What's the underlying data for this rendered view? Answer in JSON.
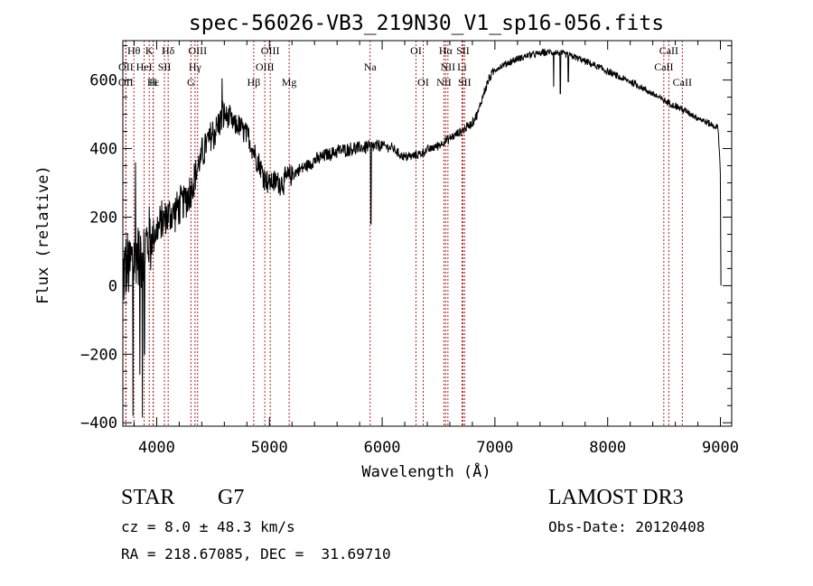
{
  "chart_data": {
    "type": "line",
    "title": "spec-56026-VB3_219N30_V1_sp16-056.fits",
    "xlabel": "Wavelength (Å)",
    "ylabel": "Flux (relative)",
    "xlim": [
      3700,
      9100
    ],
    "ylim": [
      -410,
      715
    ],
    "x_ticks": [
      4000,
      5000,
      6000,
      7000,
      8000,
      9000
    ],
    "y_ticks": [
      -400,
      -200,
      0,
      200,
      400,
      600
    ],
    "x_tick_labels": [
      "4000",
      "5000",
      "6000",
      "7000",
      "8000",
      "9000"
    ],
    "y_tick_labels": [
      "−400",
      "−200",
      "0",
      "200",
      "400",
      "600"
    ],
    "series": [
      {
        "name": "flux",
        "color": "#000000",
        "anchors": [
          [
            3700,
            40
          ],
          [
            3750,
            50
          ],
          [
            3800,
            80
          ],
          [
            3850,
            100
          ],
          [
            3900,
            120
          ],
          [
            3950,
            140
          ],
          [
            4000,
            160
          ],
          [
            4050,
            185
          ],
          [
            4100,
            205
          ],
          [
            4150,
            215
          ],
          [
            4200,
            235
          ],
          [
            4250,
            250
          ],
          [
            4300,
            275
          ],
          [
            4350,
            330
          ],
          [
            4400,
            380
          ],
          [
            4450,
            420
          ],
          [
            4500,
            440
          ],
          [
            4550,
            470
          ],
          [
            4600,
            500
          ],
          [
            4650,
            485
          ],
          [
            4700,
            465
          ],
          [
            4750,
            460
          ],
          [
            4800,
            440
          ],
          [
            4850,
            400
          ],
          [
            4900,
            360
          ],
          [
            4950,
            320
          ],
          [
            5000,
            300
          ],
          [
            5050,
            305
          ],
          [
            5100,
            300
          ],
          [
            5150,
            310
          ],
          [
            5200,
            325
          ],
          [
            5300,
            345
          ],
          [
            5400,
            365
          ],
          [
            5500,
            380
          ],
          [
            5600,
            392
          ],
          [
            5700,
            398
          ],
          [
            5800,
            402
          ],
          [
            5900,
            405
          ],
          [
            6000,
            410
          ],
          [
            6050,
            405
          ],
          [
            6100,
            400
          ],
          [
            6150,
            385
          ],
          [
            6200,
            375
          ],
          [
            6300,
            380
          ],
          [
            6400,
            395
          ],
          [
            6500,
            410
          ],
          [
            6600,
            430
          ],
          [
            6700,
            450
          ],
          [
            6800,
            475
          ],
          [
            6850,
            505
          ],
          [
            6900,
            560
          ],
          [
            6950,
            605
          ],
          [
            7000,
            630
          ],
          [
            7100,
            648
          ],
          [
            7200,
            662
          ],
          [
            7300,
            672
          ],
          [
            7400,
            678
          ],
          [
            7500,
            682
          ],
          [
            7600,
            678
          ],
          [
            7700,
            668
          ],
          [
            7800,
            655
          ],
          [
            7900,
            640
          ],
          [
            8000,
            625
          ],
          [
            8100,
            608
          ],
          [
            8200,
            595
          ],
          [
            8300,
            578
          ],
          [
            8400,
            560
          ],
          [
            8500,
            540
          ],
          [
            8600,
            525
          ],
          [
            8700,
            508
          ],
          [
            8800,
            490
          ],
          [
            8900,
            473
          ],
          [
            8980,
            460
          ],
          [
            9000,
            330
          ],
          [
            9005,
            0
          ]
        ],
        "spikes": [
          [
            3790,
            -380
          ],
          [
            3812,
            360
          ],
          [
            3850,
            -260
          ],
          [
            3872,
            -385
          ],
          [
            3890,
            -200
          ],
          [
            4580,
            605
          ],
          [
            5900,
            180
          ],
          [
            7520,
            580
          ],
          [
            7580,
            560
          ],
          [
            7650,
            595
          ]
        ]
      }
    ],
    "lines": [
      {
        "label": "Hθ",
        "wl": 3798,
        "row": 0
      },
      {
        "label": "K",
        "wl": 3934,
        "row": 0
      },
      {
        "label": "Hδ",
        "wl": 4102,
        "row": 0
      },
      {
        "label": "OIII",
        "wl": 4363,
        "row": 0
      },
      {
        "label": "OIII",
        "wl": 5007,
        "row": 0
      },
      {
        "label": "OI",
        "wl": 6300,
        "row": 0
      },
      {
        "label": "Hα",
        "wl": 6563,
        "row": 0
      },
      {
        "label": "SII",
        "wl": 6716,
        "row": 0
      },
      {
        "label": "CaII",
        "wl": 8542,
        "row": 0
      },
      {
        "label": "OII",
        "wl": 3727,
        "row": 1
      },
      {
        "label": "HeI",
        "wl": 3889,
        "row": 1
      },
      {
        "label": "SII",
        "wl": 4069,
        "row": 1
      },
      {
        "label": "Hγ",
        "wl": 4340,
        "row": 1
      },
      {
        "label": "OIII",
        "wl": 4959,
        "row": 1
      },
      {
        "label": "Na",
        "wl": 5893,
        "row": 1
      },
      {
        "label": "NII",
        "wl": 6583,
        "row": 1
      },
      {
        "label": "Li",
        "wl": 6708,
        "row": 1
      },
      {
        "label": "CaII",
        "wl": 8498,
        "row": 1
      },
      {
        "label": "OII",
        "wl": 3726,
        "row": 2
      },
      {
        "label": "Hε",
        "wl": 3970,
        "row": 2
      },
      {
        "label": "H",
        "wl": 3968,
        "row": 2
      },
      {
        "label": "G",
        "wl": 4304,
        "row": 2
      },
      {
        "label": "Hβ",
        "wl": 4861,
        "row": 2
      },
      {
        "label": "Mg",
        "wl": 5175,
        "row": 2
      },
      {
        "label": "OI",
        "wl": 6364,
        "row": 2
      },
      {
        "label": "NII",
        "wl": 6548,
        "row": 2
      },
      {
        "label": "SII",
        "wl": 6731,
        "row": 2
      },
      {
        "label": "CaII",
        "wl": 8662,
        "row": 2
      }
    ]
  },
  "info": {
    "object_type": "STAR",
    "subclass": "G7",
    "cz": "cz = 8.0 ± 48.3 km/s",
    "coords": "RA = 218.67085, DEC =  31.69710",
    "survey": "LAMOST DR3",
    "obs_date": "Obs-Date: 20120408"
  }
}
